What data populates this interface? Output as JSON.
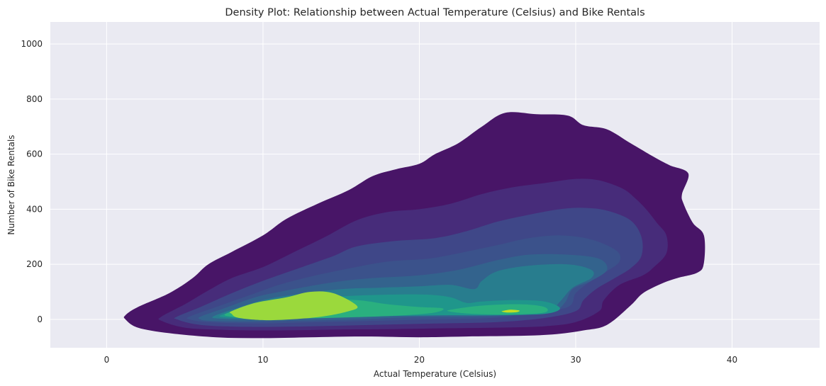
{
  "chart_data": {
    "type": "density",
    "title": "Density Plot: Relationship between Actual Temperature (Celsius) and Bike Rentals",
    "xlabel": "Actual Temperature (Celsius)",
    "ylabel": "Number of Bike Rentals",
    "xlim": [
      -3.6,
      45.6
    ],
    "ylim": [
      -103,
      1080
    ],
    "x_ticks": [
      0,
      10,
      20,
      30,
      40
    ],
    "y_ticks": [
      0,
      200,
      400,
      600,
      800,
      1000
    ],
    "grid": true,
    "colormap": "viridis",
    "levels": [
      {
        "color": "#481567",
        "points": [
          [
            1.2,
            15
          ],
          [
            2.0,
            45
          ],
          [
            4.0,
            95
          ],
          [
            5.5,
            150
          ],
          [
            6.5,
            200
          ],
          [
            8.0,
            245
          ],
          [
            10.0,
            305
          ],
          [
            11.5,
            365
          ],
          [
            13.5,
            420
          ],
          [
            15.5,
            470
          ],
          [
            17.0,
            520
          ],
          [
            18.5,
            545
          ],
          [
            20.0,
            565
          ],
          [
            21.0,
            600
          ],
          [
            22.5,
            640
          ],
          [
            24.0,
            700
          ],
          [
            25.5,
            750
          ],
          [
            27.5,
            745
          ],
          [
            29.5,
            740
          ],
          [
            30.5,
            705
          ],
          [
            32.0,
            690
          ],
          [
            33.5,
            640
          ],
          [
            35.0,
            590
          ],
          [
            36.0,
            560
          ],
          [
            37.2,
            530
          ],
          [
            36.8,
            455
          ],
          [
            36.9,
            420
          ],
          [
            37.5,
            350
          ],
          [
            38.2,
            305
          ],
          [
            38.2,
            205
          ],
          [
            37.8,
            170
          ],
          [
            36.5,
            150
          ],
          [
            35.5,
            130
          ],
          [
            34.3,
            95
          ],
          [
            33.5,
            50
          ],
          [
            32.0,
            -20
          ],
          [
            30.5,
            -40
          ],
          [
            28.5,
            -55
          ],
          [
            26.0,
            -60
          ],
          [
            23.0,
            -62
          ],
          [
            20.0,
            -65
          ],
          [
            16.5,
            -62
          ],
          [
            13.0,
            -65
          ],
          [
            10.0,
            -68
          ],
          [
            7.0,
            -65
          ],
          [
            4.0,
            -50
          ],
          [
            2.0,
            -30
          ],
          [
            1.2,
            0
          ]
        ]
      },
      {
        "color": "#472c7a",
        "points": [
          [
            3.5,
            10
          ],
          [
            5.0,
            55
          ],
          [
            6.5,
            105
          ],
          [
            8.0,
            150
          ],
          [
            10.0,
            190
          ],
          [
            12.0,
            245
          ],
          [
            14.0,
            300
          ],
          [
            16.0,
            360
          ],
          [
            18.0,
            390
          ],
          [
            20.0,
            400
          ],
          [
            22.0,
            420
          ],
          [
            24.0,
            455
          ],
          [
            26.0,
            480
          ],
          [
            28.0,
            495
          ],
          [
            30.0,
            510
          ],
          [
            31.5,
            505
          ],
          [
            33.0,
            475
          ],
          [
            33.8,
            440
          ],
          [
            34.5,
            400
          ],
          [
            35.2,
            350
          ],
          [
            35.8,
            305
          ],
          [
            35.8,
            240
          ],
          [
            35.0,
            190
          ],
          [
            34.3,
            160
          ],
          [
            32.8,
            125
          ],
          [
            31.8,
            70
          ],
          [
            31.5,
            30
          ],
          [
            30.0,
            -10
          ],
          [
            28.0,
            -25
          ],
          [
            25.0,
            -30
          ],
          [
            22.0,
            -32
          ],
          [
            18.5,
            -35
          ],
          [
            15.0,
            -37
          ],
          [
            11.0,
            -40
          ],
          [
            7.5,
            -38
          ],
          [
            5.0,
            -30
          ],
          [
            3.5,
            -5
          ]
        ]
      },
      {
        "color": "#3f4788",
        "points": [
          [
            4.5,
            10
          ],
          [
            6.0,
            45
          ],
          [
            8.0,
            95
          ],
          [
            10.0,
            140
          ],
          [
            12.5,
            190
          ],
          [
            14.5,
            230
          ],
          [
            16.0,
            265
          ],
          [
            18.5,
            285
          ],
          [
            21.0,
            295
          ],
          [
            23.0,
            320
          ],
          [
            25.0,
            355
          ],
          [
            27.0,
            380
          ],
          [
            29.0,
            400
          ],
          [
            30.5,
            405
          ],
          [
            32.0,
            395
          ],
          [
            33.5,
            360
          ],
          [
            34.2,
            300
          ],
          [
            34.2,
            230
          ],
          [
            33.5,
            185
          ],
          [
            32.5,
            150
          ],
          [
            31.3,
            110
          ],
          [
            30.5,
            70
          ],
          [
            30.0,
            30
          ],
          [
            28.0,
            5
          ],
          [
            25.0,
            -10
          ],
          [
            21.0,
            -15
          ],
          [
            17.0,
            -20
          ],
          [
            13.0,
            -25
          ],
          [
            9.0,
            -27
          ],
          [
            6.0,
            -20
          ],
          [
            4.5,
            0
          ]
        ]
      },
      {
        "color": "#3b528b",
        "points": [
          [
            5.3,
            10
          ],
          [
            7.0,
            45
          ],
          [
            9.0,
            85
          ],
          [
            11.0,
            125
          ],
          [
            13.0,
            155
          ],
          [
            15.5,
            185
          ],
          [
            18.0,
            210
          ],
          [
            20.5,
            220
          ],
          [
            22.5,
            240
          ],
          [
            25.0,
            270
          ],
          [
            27.0,
            295
          ],
          [
            29.0,
            305
          ],
          [
            31.0,
            290
          ],
          [
            32.6,
            250
          ],
          [
            32.8,
            210
          ],
          [
            32.0,
            175
          ],
          [
            31.0,
            140
          ],
          [
            30.0,
            95
          ],
          [
            29.5,
            45
          ],
          [
            27.0,
            20
          ],
          [
            24.5,
            5
          ],
          [
            21.0,
            0
          ],
          [
            17.5,
            -5
          ],
          [
            13.5,
            -10
          ],
          [
            9.5,
            -15
          ],
          [
            6.5,
            -10
          ],
          [
            5.3,
            0
          ]
        ]
      },
      {
        "color": "#33638d",
        "points": [
          [
            6.0,
            10
          ],
          [
            7.5,
            40
          ],
          [
            9.5,
            80
          ],
          [
            11.5,
            105
          ],
          [
            14.5,
            135
          ],
          [
            17.0,
            150
          ],
          [
            20.0,
            160
          ],
          [
            22.5,
            180
          ],
          [
            25.0,
            215
          ],
          [
            27.0,
            235
          ],
          [
            29.5,
            235
          ],
          [
            31.5,
            220
          ],
          [
            32.0,
            180
          ],
          [
            31.0,
            140
          ],
          [
            29.8,
            110
          ],
          [
            29.3,
            60
          ],
          [
            28.5,
            30
          ],
          [
            26.0,
            15
          ],
          [
            23.0,
            10
          ],
          [
            19.5,
            8
          ],
          [
            16.0,
            0
          ],
          [
            12.0,
            -5
          ],
          [
            8.5,
            -8
          ],
          [
            6.5,
            -5
          ],
          [
            6.0,
            0
          ]
        ]
      },
      {
        "color": "#287d8e",
        "points": [
          [
            6.8,
            10
          ],
          [
            8.0,
            35
          ],
          [
            10.0,
            70
          ],
          [
            12.0,
            90
          ],
          [
            15.0,
            110
          ],
          [
            17.5,
            115
          ],
          [
            20.0,
            120
          ],
          [
            22.0,
            125
          ],
          [
            23.5,
            110
          ],
          [
            24.0,
            140
          ],
          [
            25.0,
            175
          ],
          [
            27.0,
            195
          ],
          [
            29.5,
            200
          ],
          [
            31.0,
            180
          ],
          [
            31.0,
            150
          ],
          [
            29.8,
            115
          ],
          [
            29.0,
            65
          ],
          [
            28.3,
            35
          ],
          [
            26.0,
            22
          ],
          [
            23.0,
            18
          ],
          [
            19.5,
            15
          ],
          [
            16.0,
            10
          ],
          [
            12.0,
            3
          ],
          [
            9.0,
            0
          ],
          [
            7.2,
            3
          ]
        ]
      },
      {
        "color": "#1f968b",
        "points": [
          [
            7.3,
            15
          ],
          [
            8.5,
            35
          ],
          [
            10.5,
            60
          ],
          [
            13.0,
            75
          ],
          [
            15.5,
            85
          ],
          [
            18.0,
            90
          ],
          [
            20.5,
            90
          ],
          [
            22.0,
            80
          ],
          [
            23.0,
            60
          ],
          [
            24.0,
            65
          ],
          [
            26.0,
            70
          ],
          [
            28.0,
            65
          ],
          [
            29.0,
            40
          ],
          [
            28.0,
            20
          ],
          [
            25.0,
            15
          ],
          [
            22.0,
            15
          ],
          [
            19.0,
            13
          ],
          [
            16.0,
            10
          ],
          [
            12.0,
            5
          ],
          [
            9.0,
            5
          ],
          [
            7.5,
            8
          ]
        ]
      },
      {
        "color": "#2ab07f",
        "points": [
          [
            7.6,
            20
          ],
          [
            9.0,
            45
          ],
          [
            11.0,
            65
          ],
          [
            13.5,
            72
          ],
          [
            16.0,
            70
          ],
          [
            18.0,
            55
          ],
          [
            20.0,
            45
          ],
          [
            21.5,
            40
          ],
          [
            21.0,
            25
          ],
          [
            19.0,
            15
          ],
          [
            16.0,
            8
          ],
          [
            13.0,
            4
          ],
          [
            10.0,
            3
          ],
          [
            8.0,
            10
          ]
        ]
      },
      {
        "color": "#2ab07f",
        "points": [
          [
            22.0,
            35
          ],
          [
            24.0,
            50
          ],
          [
            26.5,
            55
          ],
          [
            28.0,
            45
          ],
          [
            28.0,
            25
          ],
          [
            26.0,
            18
          ],
          [
            23.5,
            20
          ],
          [
            22.0,
            28
          ]
        ]
      },
      {
        "color": "#9bd93c",
        "points": [
          [
            8.0,
            30
          ],
          [
            9.5,
            60
          ],
          [
            11.5,
            80
          ],
          [
            13.0,
            100
          ],
          [
            14.5,
            95
          ],
          [
            16.0,
            50
          ],
          [
            15.5,
            30
          ],
          [
            13.5,
            8
          ],
          [
            10.5,
            -3
          ],
          [
            8.5,
            5
          ],
          [
            8.0,
            20
          ]
        ]
      },
      {
        "color": "#c2df23",
        "points": [
          [
            25.3,
            30
          ],
          [
            25.8,
            35
          ],
          [
            26.4,
            32
          ],
          [
            26.2,
            26
          ],
          [
            25.6,
            25
          ],
          [
            25.3,
            28
          ]
        ]
      }
    ]
  }
}
